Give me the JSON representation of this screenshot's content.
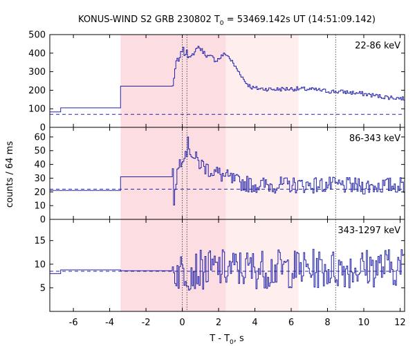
{
  "chart_data": {
    "type": "line",
    "title": "KONUS-WIND S2 GRB 230802 T",
    "title_subscript": "0",
    "title_rest": " = 53469.142s UT (14:51:09.142)",
    "xlabel": "T - T",
    "xlabel_subscript": "0",
    "xlabel_rest": ", s",
    "ylabel": "counts / 64 ms",
    "xlim": [
      -7.3,
      12.25
    ],
    "x_ticks": [
      "-6",
      "-4",
      "-2",
      "0",
      "2",
      "4",
      "6",
      "8",
      "10",
      "12"
    ],
    "x_tick_values": [
      -6,
      -4,
      -2,
      0,
      2,
      4,
      6,
      8,
      10,
      12
    ],
    "shaded_regions": [
      {
        "x0": -3.4,
        "x1": 2.4,
        "color": "#fcdde1"
      },
      {
        "x0": 2.4,
        "x1": 6.4,
        "color": "#feeeee"
      }
    ],
    "vertical_lines_dotted": [
      0.0,
      0.256,
      8.45
    ],
    "line_color": "#2222aa",
    "grid": false,
    "panels": [
      {
        "label": "22-86 keV",
        "ylim": [
          0,
          500
        ],
        "y_ticks": [
          "0",
          "100",
          "200",
          "300",
          "400",
          "500"
        ],
        "y_tick_values": [
          0,
          100,
          200,
          300,
          400,
          500
        ],
        "background_level": 70,
        "keypoints": [
          [
            -7.3,
            83
          ],
          [
            -6.7,
            83
          ],
          [
            -6.7,
            105
          ],
          [
            -3.4,
            105
          ],
          [
            -3.4,
            222
          ],
          [
            -0.55,
            222
          ],
          [
            -0.5,
            260
          ],
          [
            -0.4,
            330
          ],
          [
            -0.3,
            370
          ],
          [
            -0.2,
            350
          ],
          [
            -0.1,
            400
          ],
          [
            0.0,
            430
          ],
          [
            0.1,
            390
          ],
          [
            0.2,
            410
          ],
          [
            0.3,
            380
          ],
          [
            0.5,
            400
          ],
          [
            0.6,
            380
          ],
          [
            0.8,
            440
          ],
          [
            1.0,
            420
          ],
          [
            1.2,
            400
          ],
          [
            1.4,
            380
          ],
          [
            1.6,
            380
          ],
          [
            1.8,
            360
          ],
          [
            2.0,
            370
          ],
          [
            2.2,
            390
          ],
          [
            2.4,
            395
          ],
          [
            2.6,
            370
          ],
          [
            2.8,
            340
          ],
          [
            3.0,
            310
          ],
          [
            3.2,
            285
          ],
          [
            3.4,
            250
          ],
          [
            3.6,
            230
          ],
          [
            3.8,
            215
          ],
          [
            4.0,
            210
          ],
          [
            5.0,
            205
          ],
          [
            6.0,
            208
          ],
          [
            7.0,
            205
          ],
          [
            8.0,
            195
          ],
          [
            9.0,
            190
          ],
          [
            10.0,
            180
          ],
          [
            11.0,
            165
          ],
          [
            12.25,
            155
          ]
        ],
        "noise": 12
      },
      {
        "label": "86-343 keV",
        "ylim": [
          0,
          67
        ],
        "y_ticks": [
          "0",
          "10",
          "20",
          "30",
          "40",
          "50",
          "60"
        ],
        "y_tick_values": [
          0,
          10,
          20,
          30,
          40,
          50,
          60
        ],
        "background_level": 22,
        "keypoints": [
          [
            -7.3,
            21
          ],
          [
            -3.4,
            21
          ],
          [
            -3.4,
            31
          ],
          [
            -0.55,
            31
          ],
          [
            -0.55,
            5
          ],
          [
            -0.4,
            28
          ],
          [
            -0.2,
            40
          ],
          [
            0.0,
            48
          ],
          [
            0.2,
            50
          ],
          [
            0.3,
            55
          ],
          [
            0.6,
            45
          ],
          [
            1.0,
            40
          ],
          [
            1.5,
            36
          ],
          [
            2.0,
            33
          ],
          [
            2.5,
            30
          ],
          [
            3.0,
            27
          ],
          [
            4.0,
            25
          ],
          [
            6.0,
            25
          ],
          [
            8.0,
            25
          ],
          [
            10.0,
            24
          ],
          [
            12.25,
            25
          ]
        ],
        "noise": 6
      },
      {
        "label": "343-1297 keV",
        "ylim": [
          0,
          19.5
        ],
        "y_ticks": [
          "5",
          "10",
          "15"
        ],
        "y_tick_values": [
          5,
          10,
          15
        ],
        "background_level": 8.5,
        "keypoints": [
          [
            -7.3,
            8
          ],
          [
            -6.7,
            8
          ],
          [
            -6.7,
            8.8
          ],
          [
            -3.4,
            8.8
          ],
          [
            -3.4,
            8.6
          ],
          [
            -0.55,
            8.6
          ],
          [
            -0.5,
            8.5
          ],
          [
            2.0,
            9
          ],
          [
            4.0,
            9
          ],
          [
            8.0,
            9
          ],
          [
            12.25,
            9.5
          ]
        ],
        "noise": 4.2
      }
    ]
  }
}
